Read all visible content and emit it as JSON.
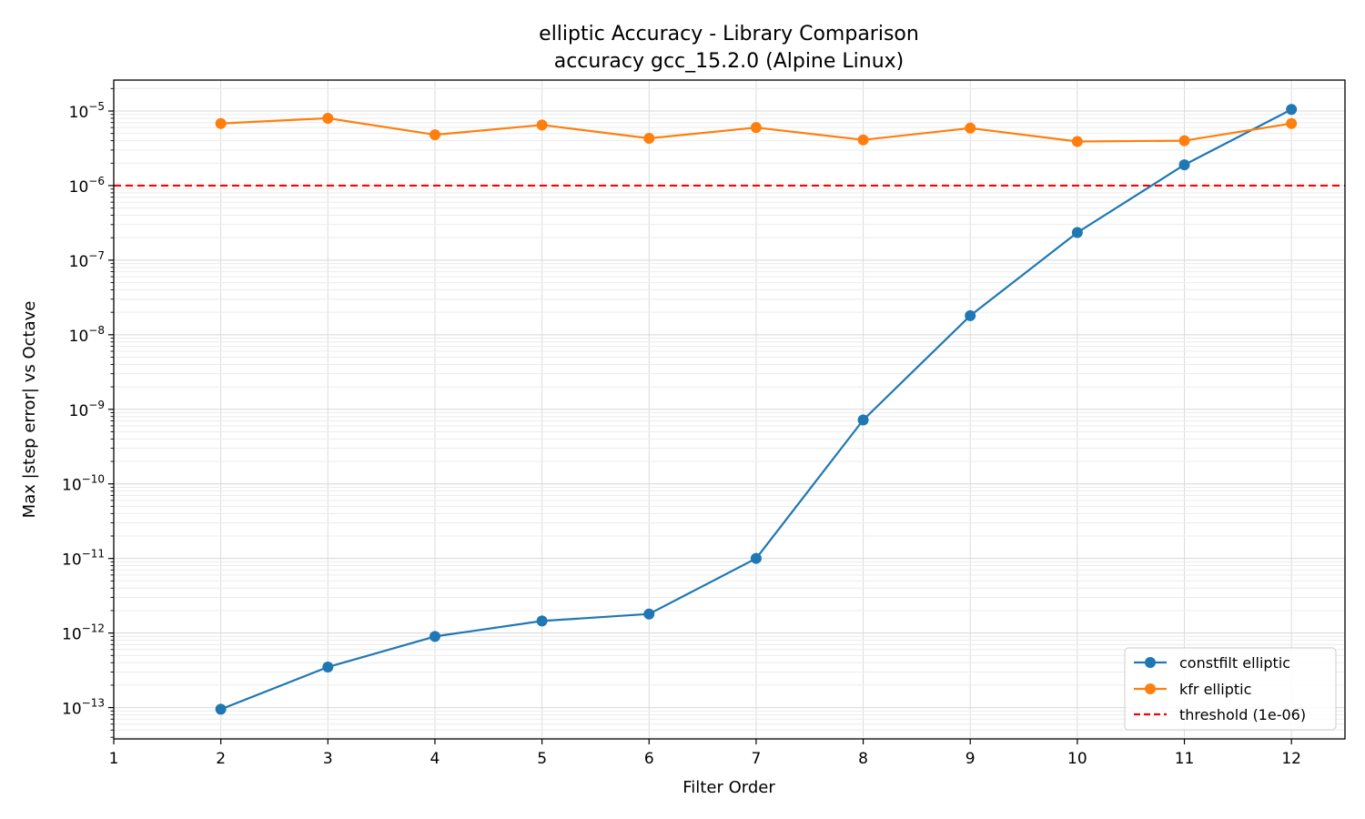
{
  "chart_data": {
    "type": "line",
    "title": "elliptic Accuracy - Library Comparison",
    "subtitle": "accuracy gcc_15.2.0 (Alpine Linux)",
    "xlabel": "Filter Order",
    "ylabel": "Max |step error| vs Octave",
    "x": [
      2,
      3,
      4,
      5,
      6,
      7,
      8,
      9,
      10,
      11,
      12
    ],
    "xlim": [
      1,
      12.5
    ],
    "xticks": [
      "1",
      "2",
      "3",
      "4",
      "5",
      "6",
      "7",
      "8",
      "9",
      "10",
      "11",
      "12"
    ],
    "yscale": "log",
    "ylim": [
      3.8e-14,
      2.6e-05
    ],
    "ytick_exponents": [
      "-13",
      "-12",
      "-11",
      "-10",
      "-9",
      "-8",
      "-7",
      "-6",
      "-5"
    ],
    "grid": true,
    "legend_position": "lower-right",
    "series": [
      {
        "name": "constfilt elliptic",
        "color": "#1f77b4",
        "values": [
          9.5e-14,
          3.5e-13,
          9e-13,
          1.45e-12,
          1.8e-12,
          1e-11,
          7.2e-10,
          1.8e-08,
          2.35e-07,
          1.9e-06,
          1.05e-05
        ]
      },
      {
        "name": "kfr elliptic",
        "color": "#ff7f0e",
        "values": [
          6.8e-06,
          8e-06,
          4.8e-06,
          6.5e-06,
          4.3e-06,
          6e-06,
          4.1e-06,
          5.9e-06,
          3.9e-06,
          4e-06,
          6.8e-06
        ]
      }
    ],
    "threshold": {
      "name": "threshold (1e-06)",
      "value": 1e-06,
      "color": "#ff0000"
    }
  }
}
